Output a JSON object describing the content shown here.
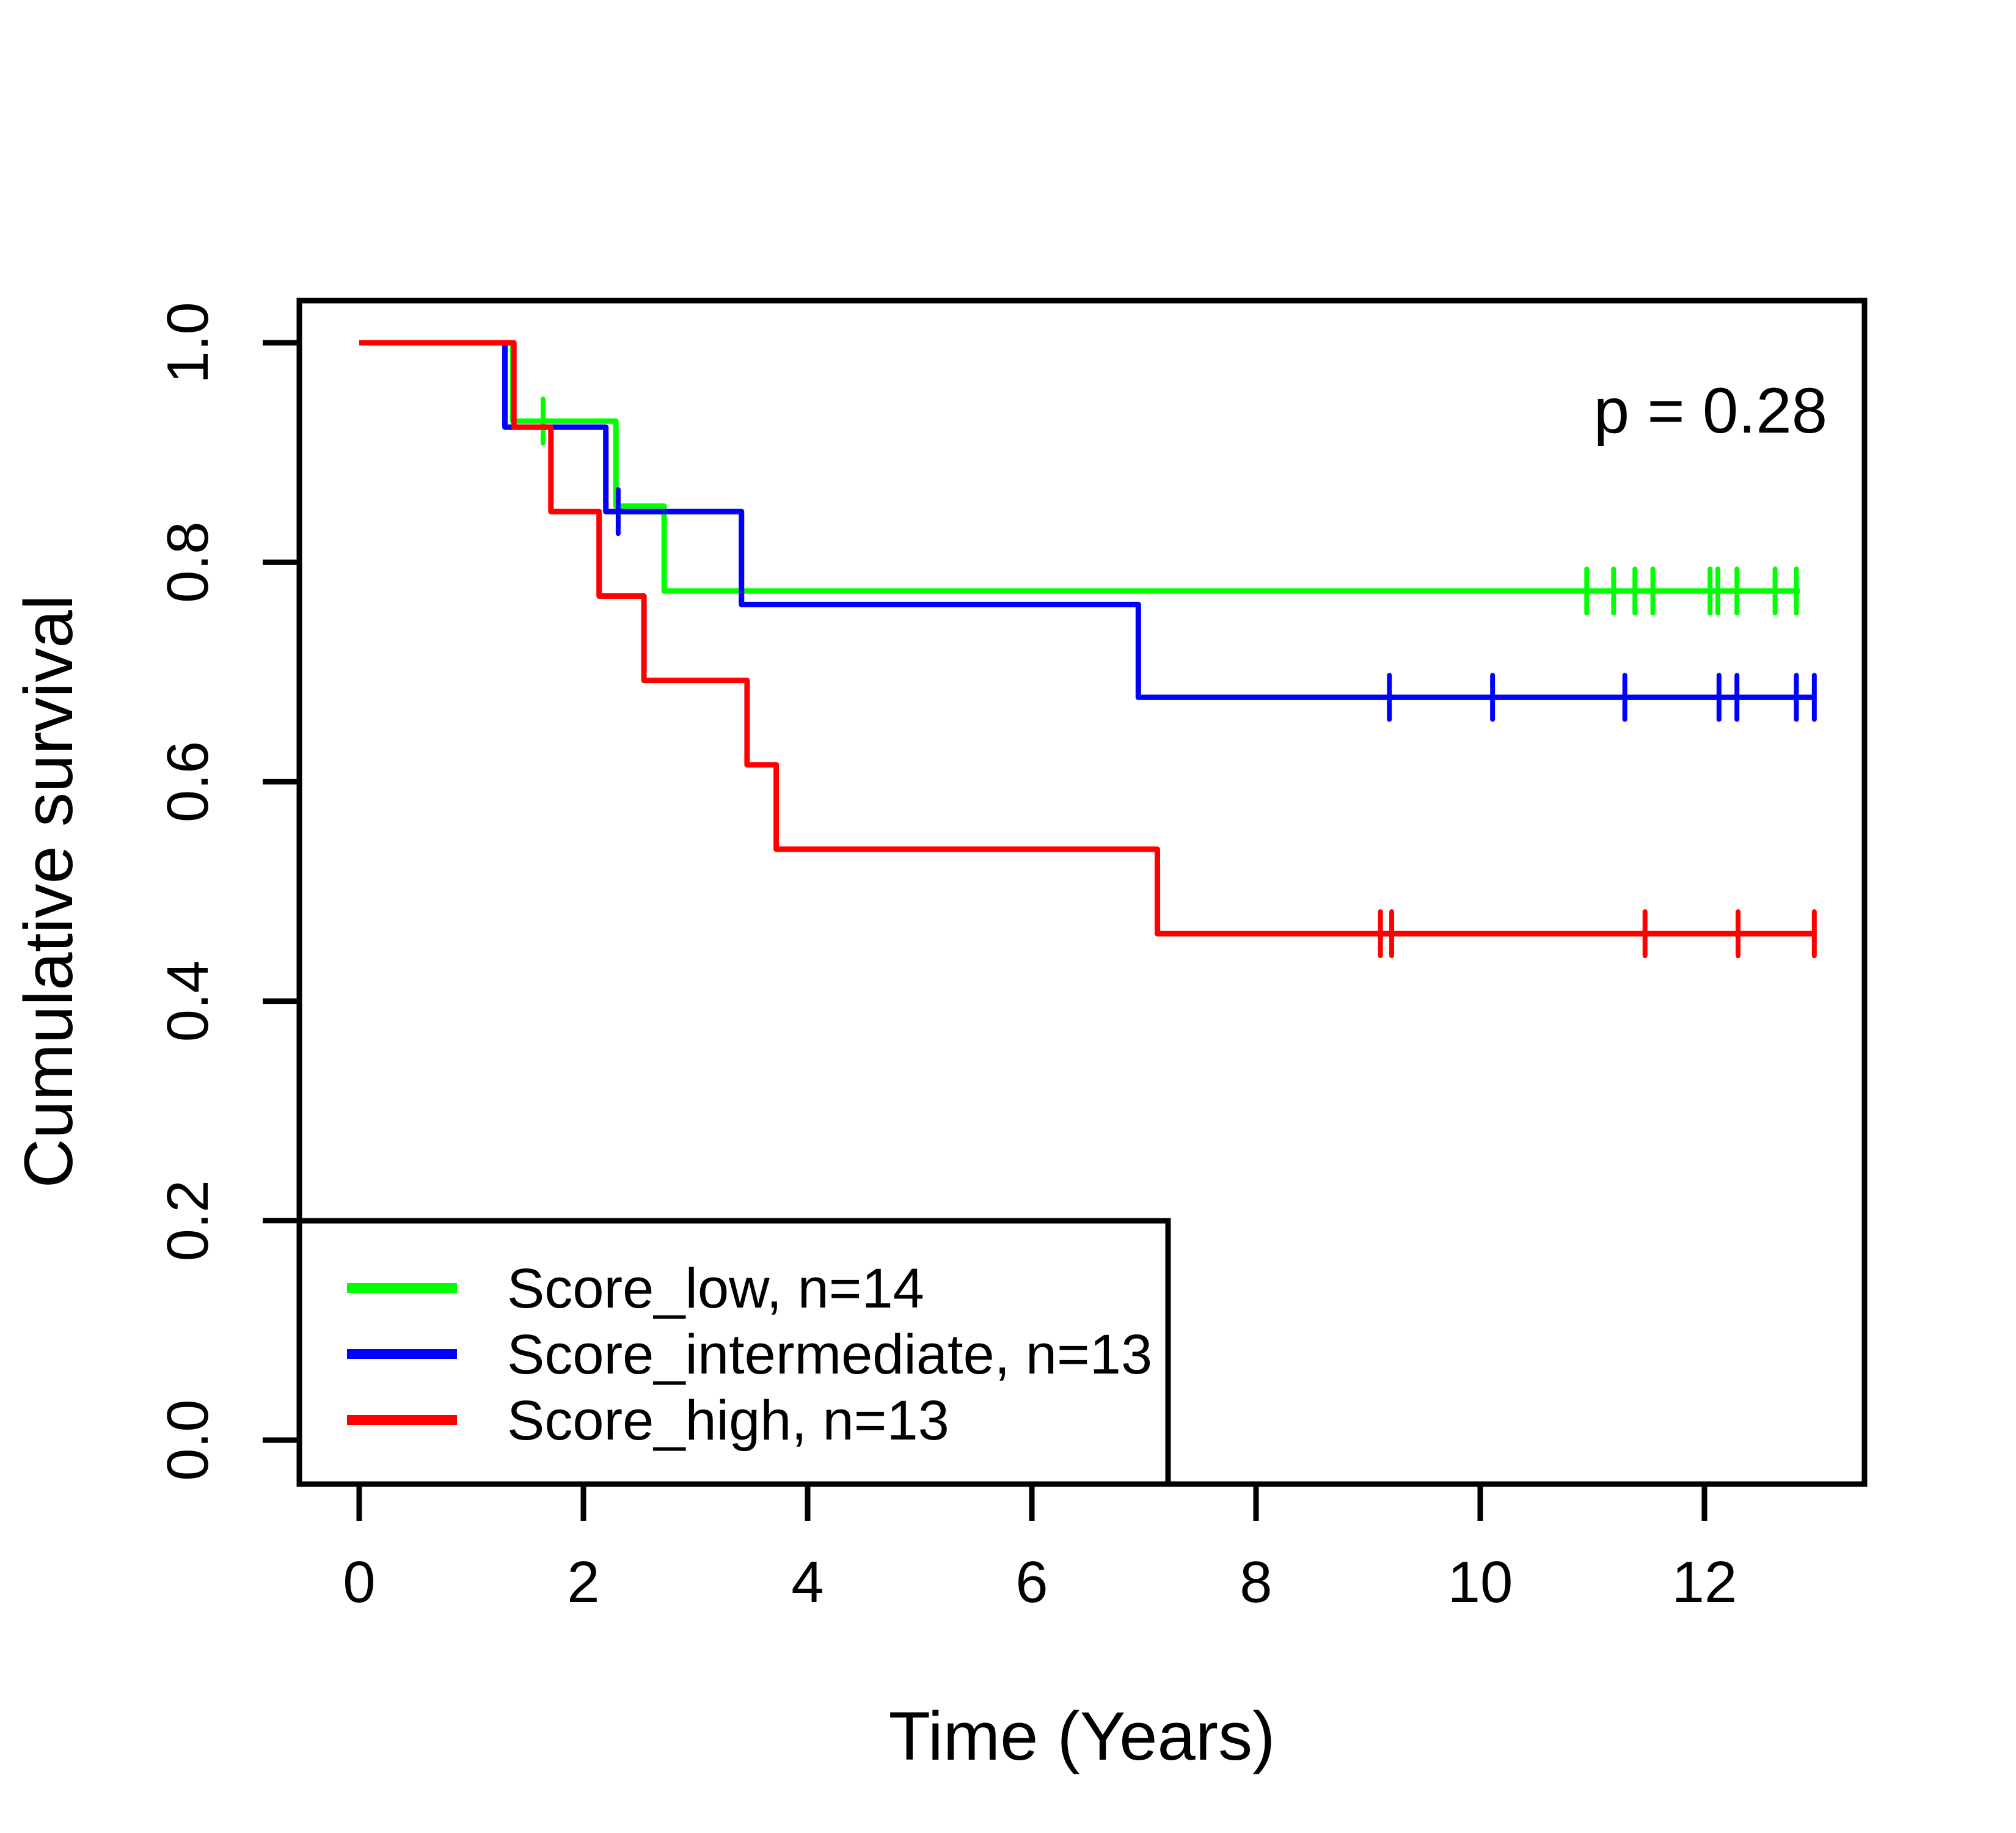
{
  "chart_data": {
    "type": "line",
    "subtype": "kaplan-meier-step",
    "title": "",
    "p_label": "p = 0.28",
    "xlabel": "Time (Years)",
    "ylabel": "Cumulative survival",
    "xlim": [
      0,
      13
    ],
    "ylim": [
      0.0,
      1.0
    ],
    "grid": false,
    "legend_position": "bottom-left",
    "x_tick_values": [
      0,
      2,
      4,
      6,
      8,
      10,
      12
    ],
    "x_tick_labels": [
      "0",
      "2",
      "4",
      "6",
      "8",
      "10",
      "12"
    ],
    "y_tick_values": [
      1.0,
      0.8,
      0.6,
      0.4,
      0.2,
      0.0
    ],
    "y_tick_labels": [
      "1.0",
      "0.8",
      "0.6",
      "0.4",
      "0.2",
      "0.0"
    ],
    "colors": {
      "score_low": "#00FF00",
      "score_intermediate": "#0000FF",
      "score_high": "#FF0000",
      "axis": "#000000"
    },
    "series": [
      {
        "name": "Score_low, n=14",
        "group": "Score_low",
        "n": 14,
        "color": "#00FF00",
        "steps": [
          [
            0,
            1.0
          ],
          [
            1.37,
            0.9286
          ],
          [
            2.29,
            0.8512
          ],
          [
            2.72,
            0.7738
          ]
        ],
        "end_time": 12.85,
        "censors": [
          [
            1.64,
            0.9286
          ],
          [
            10.95,
            0.7738
          ],
          [
            11.19,
            0.7738
          ],
          [
            11.38,
            0.7738
          ],
          [
            11.54,
            0.7738
          ],
          [
            12.05,
            0.7738
          ],
          [
            12.12,
            0.7738
          ],
          [
            12.29,
            0.7738
          ],
          [
            12.63,
            0.7738
          ],
          [
            12.82,
            0.7738
          ]
        ]
      },
      {
        "name": "Score_intermediate, n=13",
        "group": "Score_intermediate",
        "n": 13,
        "color": "#0000FF",
        "steps": [
          [
            0,
            1.0
          ],
          [
            1.3,
            0.9231
          ],
          [
            2.2,
            0.8462
          ],
          [
            3.41,
            0.7615
          ],
          [
            6.95,
            0.6769
          ]
        ],
        "end_time": 13.0,
        "censors": [
          [
            2.31,
            0.8462
          ],
          [
            9.19,
            0.6769
          ],
          [
            10.11,
            0.6769
          ],
          [
            11.29,
            0.6769
          ],
          [
            12.13,
            0.6769
          ],
          [
            12.29,
            0.6769
          ],
          [
            12.82,
            0.6769
          ],
          [
            12.98,
            0.6769
          ]
        ]
      },
      {
        "name": "Score_high, n=13",
        "group": "Score_high",
        "n": 13,
        "color": "#FF0000",
        "steps": [
          [
            0,
            1.0
          ],
          [
            1.38,
            0.9231
          ],
          [
            1.71,
            0.8462
          ],
          [
            2.14,
            0.7692
          ],
          [
            2.54,
            0.6923
          ],
          [
            3.46,
            0.6154
          ],
          [
            3.72,
            0.5385
          ],
          [
            7.12,
            0.4615
          ]
        ],
        "end_time": 13.0,
        "censors": [
          [
            9.11,
            0.4615
          ],
          [
            9.21,
            0.4615
          ],
          [
            11.47,
            0.4615
          ],
          [
            12.3,
            0.4615
          ],
          [
            12.98,
            0.4615
          ]
        ]
      }
    ]
  }
}
